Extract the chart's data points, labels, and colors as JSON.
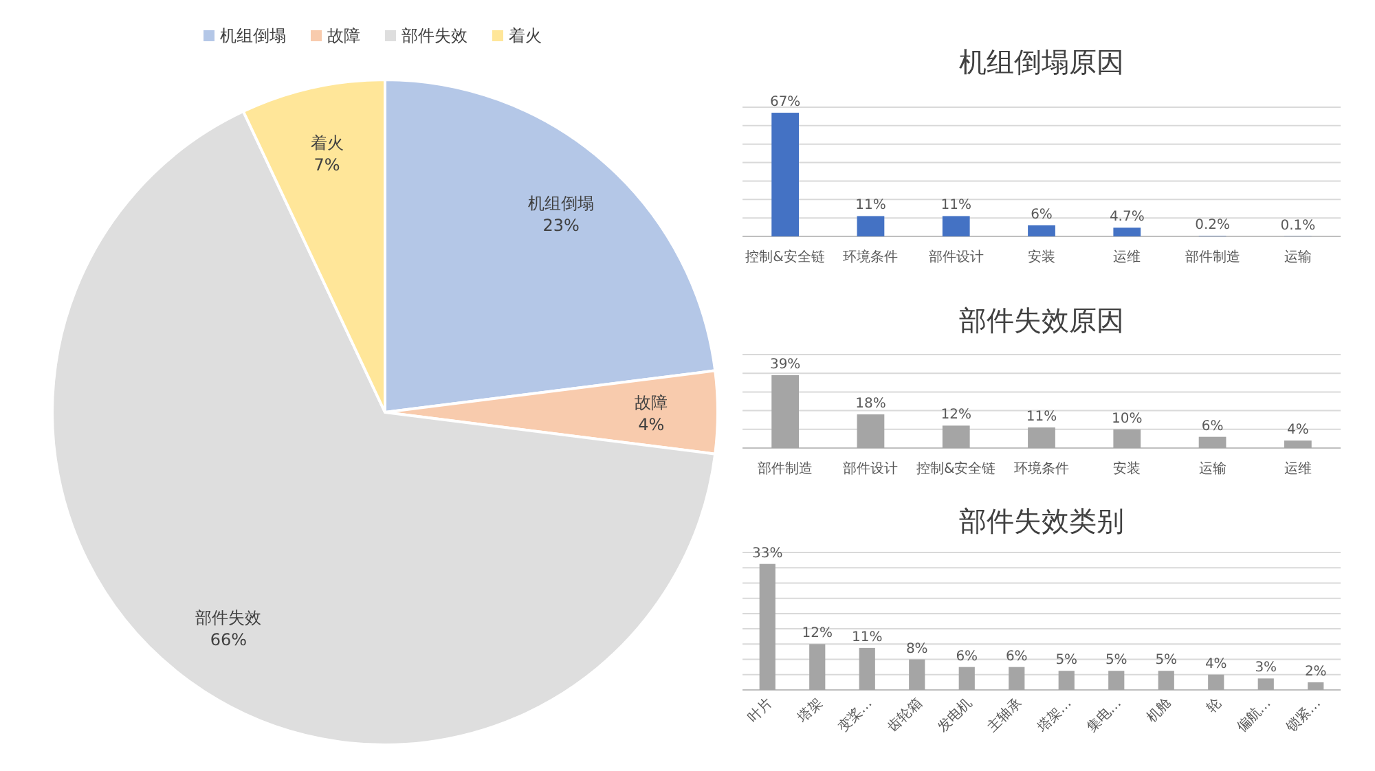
{
  "chart_data": [
    {
      "type": "pie",
      "categories": [
        "机组倒塌",
        "故障",
        "部件失效",
        "着火"
      ],
      "values": [
        23,
        4,
        66,
        7
      ],
      "value_labels": [
        "23%",
        "4%",
        "66%",
        "7%"
      ],
      "colors": [
        "#b4c7e7",
        "#f8cbad",
        "#dedede",
        "#ffe699"
      ],
      "legend": "top"
    },
    {
      "type": "bar",
      "title": "机组倒塌原因",
      "categories": [
        "控制&安全链",
        "环境条件",
        "部件设计",
        "安装",
        "运维",
        "部件制造",
        "运输"
      ],
      "values": [
        67,
        11,
        11,
        6,
        4.7,
        0.2,
        0.1
      ],
      "value_labels": [
        "67%",
        "11%",
        "11%",
        "6%",
        "4.7%",
        "0.2%",
        "0.1%"
      ],
      "color": "#4472c4",
      "ylim": [
        0,
        70
      ],
      "yticks": [
        {
          "value": 0,
          "label": null
        },
        {
          "value": 10,
          "label": null
        },
        {
          "value": 20,
          "label": null
        },
        {
          "value": 30,
          "label": null
        },
        {
          "value": 40,
          "label": null
        },
        {
          "value": 50,
          "label": null
        },
        {
          "value": 60,
          "label": null
        },
        {
          "value": 70,
          "label": null
        }
      ],
      "grid": true
    },
    {
      "type": "bar",
      "title": "部件失效原因",
      "categories": [
        "部件制造",
        "部件设计",
        "控制&安全链",
        "环境条件",
        "安装",
        "运输",
        "运维"
      ],
      "values": [
        39,
        18,
        12,
        11,
        10,
        6,
        4
      ],
      "value_labels": [
        "39%",
        "18%",
        "12%",
        "11%",
        "10%",
        "6%",
        "4%"
      ],
      "color": "#a5a5a5",
      "ylim": [
        0,
        50
      ],
      "yticks": [
        {
          "value": 0,
          "label": null
        },
        {
          "value": 10,
          "label": null
        },
        {
          "value": 20,
          "label": null
        },
        {
          "value": 30,
          "label": null
        },
        {
          "value": 40,
          "label": null
        },
        {
          "value": 50,
          "label": null
        }
      ],
      "grid": true
    },
    {
      "type": "bar",
      "title": "部件失效类别",
      "categories": [
        "叶片",
        "塔架",
        "变桨…",
        "齿轮箱",
        "发电机",
        "主轴承",
        "塔架…",
        "集电…",
        "机舱",
        "轮",
        "偏航…",
        "锁紧…"
      ],
      "values": [
        33,
        12,
        11,
        8,
        6,
        6,
        5,
        5,
        5,
        4,
        3,
        2
      ],
      "value_labels": [
        "33%",
        "12%",
        "11%",
        "8%",
        "6%",
        "6%",
        "5%",
        "5%",
        "5%",
        "4%",
        "3%",
        "2%"
      ],
      "color": "#a5a5a5",
      "ylim": [
        0,
        36
      ],
      "yticks": [
        {
          "value": 0,
          "label": null
        },
        {
          "value": 4,
          "label": null
        },
        {
          "value": 8,
          "label": null
        },
        {
          "value": 12,
          "label": null
        },
        {
          "value": 16,
          "label": null
        },
        {
          "value": 20,
          "label": null
        },
        {
          "value": 24,
          "label": null
        },
        {
          "value": 28,
          "label": null
        },
        {
          "value": 32,
          "label": null
        },
        {
          "value": 36,
          "label": null
        }
      ],
      "grid": true
    }
  ]
}
